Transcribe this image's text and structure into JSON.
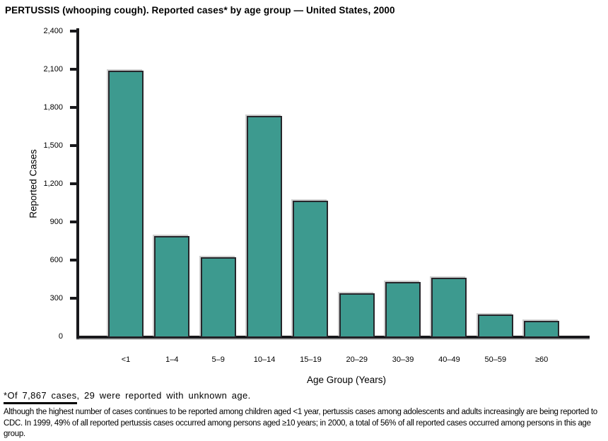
{
  "title": "PERTUSSIS (whooping cough). Reported cases* by age group — United States, 2000",
  "chart_data": {
    "type": "bar",
    "title": "PERTUSSIS (whooping cough). Reported cases* by age group — United States, 2000",
    "categories": [
      "<1",
      "1–4",
      "5–9",
      "10–14",
      "15–19",
      "20–29",
      "30–39",
      "40–49",
      "50–59",
      "≥60"
    ],
    "values": [
      2090,
      790,
      620,
      1735,
      1065,
      340,
      430,
      460,
      175,
      120
    ],
    "xlabel": "Age Group (Years)",
    "ylabel": "Reported Cases",
    "ylim": [
      0,
      2400
    ],
    "grid": false,
    "legend": "none",
    "yticks": [
      {
        "value": 0,
        "label": "0"
      },
      {
        "value": 300,
        "label": "300"
      },
      {
        "value": 600,
        "label": "600"
      },
      {
        "value": 900,
        "label": "900"
      },
      {
        "value": 1200,
        "label": "1,200"
      },
      {
        "value": 1500,
        "label": "1,500"
      },
      {
        "value": 1800,
        "label": "1,800"
      },
      {
        "value": 2100,
        "label": "2,100"
      },
      {
        "value": 2400,
        "label": "2,400"
      }
    ],
    "bar_color": "#3D9A8F",
    "bar_border_color": "#26262b",
    "axis_color": "#19191c"
  },
  "footnote": {
    "underlined": "*Of 7,867 cases",
    "rest": ", 29 were reported with unknown age."
  },
  "note": "Although the highest number of cases continues to be reported among children aged <1 year, pertussis cases among adolescents and adults increasingly are being reported to CDC. In 1999, 49% of all reported pertussis cases occurred among persons aged ≥10 years; in 2000, a total of 56% of all reported cases occurred among persons in this age group."
}
